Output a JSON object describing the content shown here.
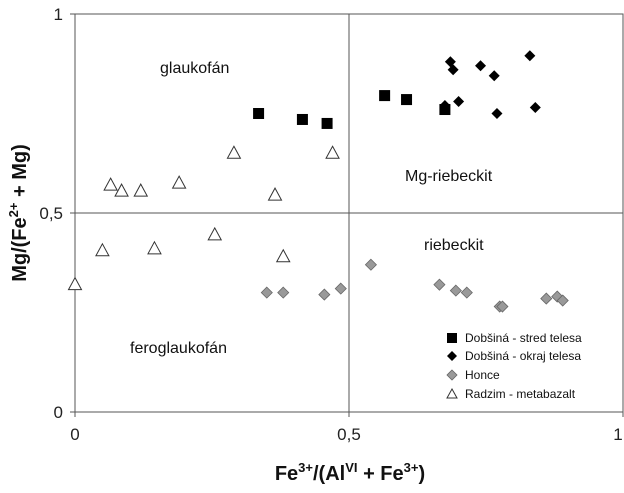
{
  "chart_data": {
    "type": "scatter",
    "xlabel": "Fe3+/(AlVI + Fe3+)",
    "ylabel": "Mg/(Fe2+ + Mg)",
    "xlim": [
      0,
      1
    ],
    "ylim": [
      0,
      1
    ],
    "x_ticks": [
      "0",
      "0,5",
      "1"
    ],
    "y_ticks": [
      "0",
      "0,5",
      "1"
    ],
    "grid": false,
    "divider_lines": {
      "x": 0.5,
      "y": 0.5
    },
    "legend_position": "bottom-right",
    "region_labels": [
      "glaukofán",
      "Mg-riebeckit",
      "riebeckit",
      "feroglaukofán"
    ],
    "series": [
      {
        "name": "Dobšiná - stred telesa",
        "marker": "square",
        "color": "#000000",
        "points": [
          [
            0.335,
            0.75
          ],
          [
            0.415,
            0.735
          ],
          [
            0.46,
            0.725
          ],
          [
            0.565,
            0.795
          ],
          [
            0.605,
            0.785
          ],
          [
            0.675,
            0.76
          ]
        ]
      },
      {
        "name": "Dobšiná - okraj telesa",
        "marker": "diamond",
        "color": "#000000",
        "points": [
          [
            0.685,
            0.88
          ],
          [
            0.69,
            0.86
          ],
          [
            0.74,
            0.87
          ],
          [
            0.765,
            0.845
          ],
          [
            0.83,
            0.895
          ],
          [
            0.675,
            0.77
          ],
          [
            0.7,
            0.78
          ],
          [
            0.77,
            0.75
          ],
          [
            0.84,
            0.765
          ]
        ]
      },
      {
        "name": "Honce",
        "marker": "diamond",
        "color": "#999999",
        "points": [
          [
            0.35,
            0.3
          ],
          [
            0.38,
            0.3
          ],
          [
            0.455,
            0.295
          ],
          [
            0.485,
            0.31
          ],
          [
            0.54,
            0.37
          ],
          [
            0.665,
            0.32
          ],
          [
            0.695,
            0.305
          ],
          [
            0.715,
            0.3
          ],
          [
            0.775,
            0.265
          ],
          [
            0.78,
            0.265
          ],
          [
            0.86,
            0.285
          ],
          [
            0.88,
            0.29
          ],
          [
            0.89,
            0.28
          ]
        ]
      },
      {
        "name": "Radzim - metabazalt",
        "marker": "triangle-open",
        "color": "#000000",
        "points": [
          [
            0.0,
            0.32
          ],
          [
            0.05,
            0.405
          ],
          [
            0.065,
            0.57
          ],
          [
            0.085,
            0.555
          ],
          [
            0.12,
            0.555
          ],
          [
            0.145,
            0.41
          ],
          [
            0.19,
            0.575
          ],
          [
            0.255,
            0.445
          ],
          [
            0.29,
            0.65
          ],
          [
            0.365,
            0.545
          ],
          [
            0.38,
            0.39
          ],
          [
            0.47,
            0.65
          ]
        ]
      }
    ]
  }
}
